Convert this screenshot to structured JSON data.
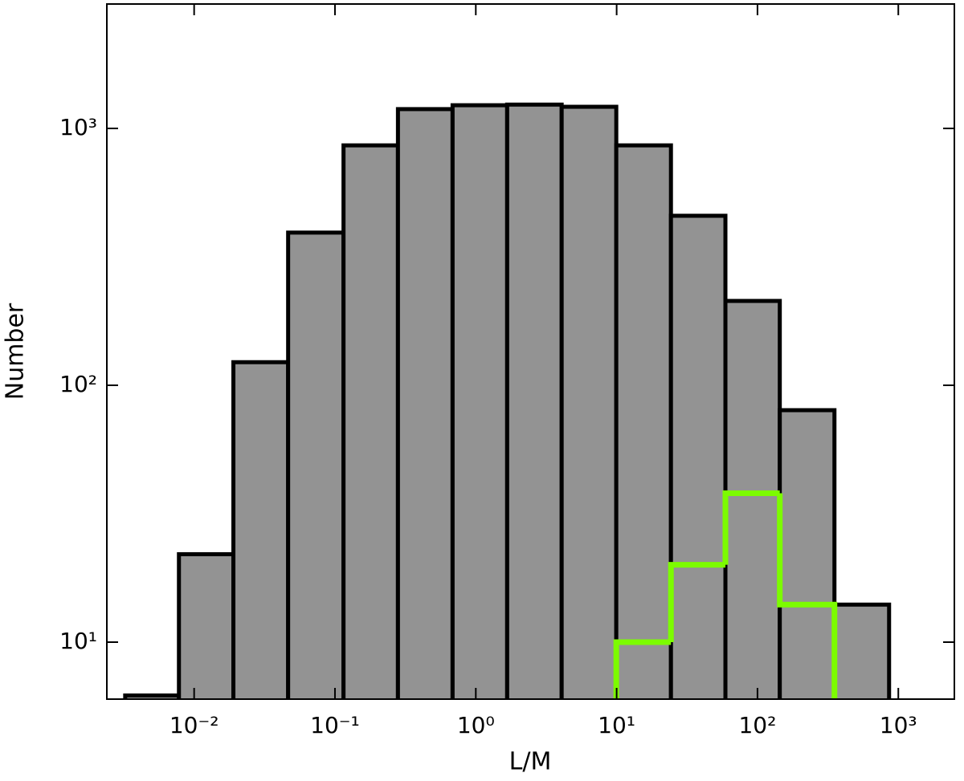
{
  "chart_data": {
    "type": "histogram",
    "x_label": "L/M",
    "y_label": "Number",
    "xscale": "log",
    "yscale": "log",
    "xlim": [
      0.0024,
      2500
    ],
    "ylim": [
      6,
      3050
    ],
    "xticks": [
      {
        "value": 0.01,
        "label": "10⁻²"
      },
      {
        "value": 0.1,
        "label": "10⁻¹"
      },
      {
        "value": 1,
        "label": "10⁰"
      },
      {
        "value": 10,
        "label": "10¹"
      },
      {
        "value": 100,
        "label": "10²"
      },
      {
        "value": 1000,
        "label": "10³"
      }
    ],
    "yticks": [
      {
        "value": 10,
        "label": "10¹"
      },
      {
        "value": 100,
        "label": "10²"
      },
      {
        "value": 1000,
        "label": "10³"
      }
    ],
    "series": [
      {
        "color": "#939393",
        "edgecolor": "#000000",
        "style": "bar",
        "bins": [
          0.00324,
          0.0078,
          0.019,
          0.0465,
          0.115,
          0.28,
          0.684,
          1.67,
          4.07,
          9.94,
          24.3,
          59.2,
          144,
          352,
          860
        ],
        "values": [
          6.2,
          22,
          123,
          393,
          859,
          1189,
          1231,
          1238,
          1214,
          859,
          457,
          213,
          80,
          14
        ]
      },
      {
        "color": "#7cfc00",
        "style": "step",
        "bins": [
          9.94,
          24.3,
          59.2,
          144,
          352
        ],
        "values": [
          10,
          20,
          38,
          14
        ]
      }
    ]
  }
}
